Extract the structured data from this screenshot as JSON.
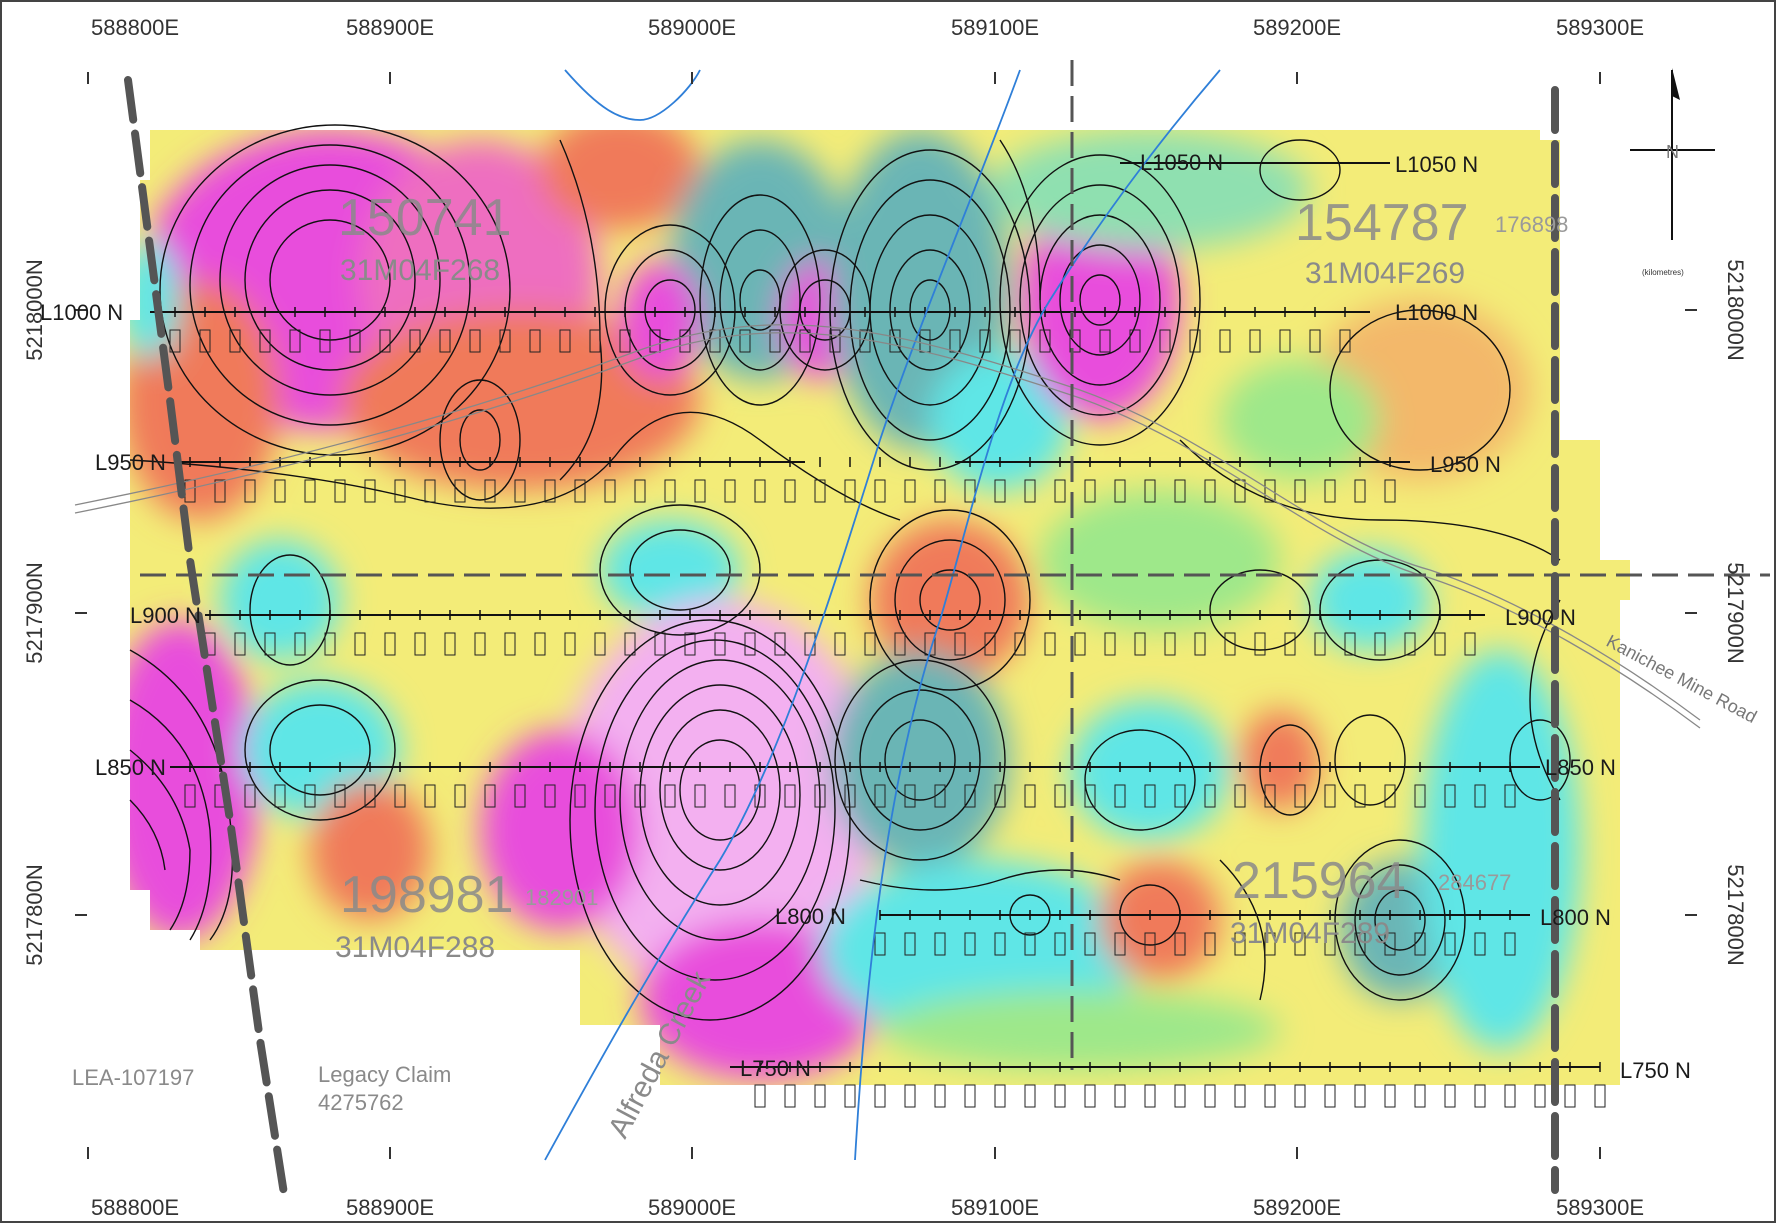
{
  "easting_labels": [
    "588800E",
    "588900E",
    "589000E",
    "589100E",
    "589200E",
    "589300E"
  ],
  "northing_labels": [
    "5218000N",
    "5217900N",
    "5217800N"
  ],
  "survey_lines": {
    "left": [
      "L1000 N",
      "L950 N",
      "L900 N",
      "L850 N"
    ],
    "right": [
      "L1050 N",
      "L1000 N",
      "L950 N",
      "L900 N",
      "L850 N",
      "L800 N",
      "L750 N"
    ],
    "mid": [
      "L1050 N",
      "L800 N",
      "L750 N"
    ]
  },
  "claims": {
    "nw": {
      "number": "150741",
      "id": "31M04F268"
    },
    "ne": {
      "number": "154787",
      "id": "31M04F269",
      "extra": "176898"
    },
    "sw": {
      "number": "198981",
      "id": "31M04F288",
      "extra": "182901"
    },
    "se": {
      "number": "215964",
      "id": "31M04F289",
      "extra": "284677"
    }
  },
  "lea": "LEA-107197",
  "legacy_claim": [
    "Legacy Claim",
    "4275762"
  ],
  "creek": "Alfreda Creek",
  "road": "Kanichee Mine Road",
  "north_arrow": {
    "label": "N",
    "scale_note": "(kilometres)"
  },
  "colors": {
    "high": "#e84ddc",
    "mid_high": "#f07a5a",
    "mid": "#f7e86a",
    "mid_low": "#9ee88a",
    "low": "#5fe6e6",
    "very_low": "#6bb5b5",
    "creek": "#2f7fd8",
    "boundary": "#555555"
  }
}
